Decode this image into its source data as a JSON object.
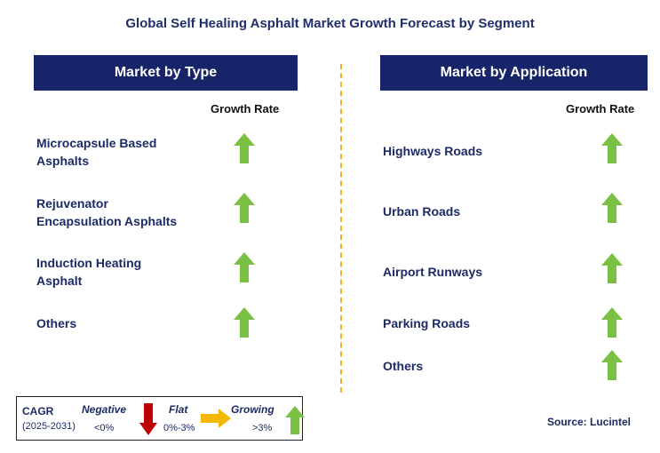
{
  "title": "Global Self Healing Asphalt Market Growth Forecast by Segment",
  "left_panel": {
    "header": "Market by Type",
    "growth_label": "Growth Rate",
    "items": [
      {
        "line1": "Microcapsule Based",
        "line2": "Asphalts",
        "trend": "growing"
      },
      {
        "line1": "Rejuvenator",
        "line2": "Encapsulation Asphalts",
        "trend": "growing"
      },
      {
        "line1": "Induction Heating",
        "line2": "Asphalt",
        "trend": "growing"
      },
      {
        "line1": "Others",
        "line2": "",
        "trend": "growing"
      }
    ]
  },
  "right_panel": {
    "header": "Market by Application",
    "growth_label": "Growth Rate",
    "items": [
      {
        "label": "Highways Roads",
        "trend": "growing"
      },
      {
        "label": "Urban Roads",
        "trend": "growing"
      },
      {
        "label": "Airport Runways",
        "trend": "growing"
      },
      {
        "label": "Parking Roads",
        "trend": "growing"
      },
      {
        "label": "Others",
        "trend": "growing"
      }
    ]
  },
  "legend": {
    "cagr": "CAGR",
    "period": "(2025-2031)",
    "negative": {
      "label": "Negative",
      "range": "<0%",
      "icon": "arrow-down-icon",
      "color": "#c00000"
    },
    "flat": {
      "label": "Flat",
      "range": "0%-3%",
      "icon": "arrow-right-icon",
      "color": "#f5b800"
    },
    "growing": {
      "label": "Growing",
      "range": ">3%",
      "icon": "arrow-up-icon",
      "color": "#7ac143"
    }
  },
  "source": "Source: Lucintel",
  "colors": {
    "header_bg": "#17246a",
    "text": "#1c2a66",
    "up_arrow": "#7ac143",
    "divider": "#f2b01e"
  }
}
